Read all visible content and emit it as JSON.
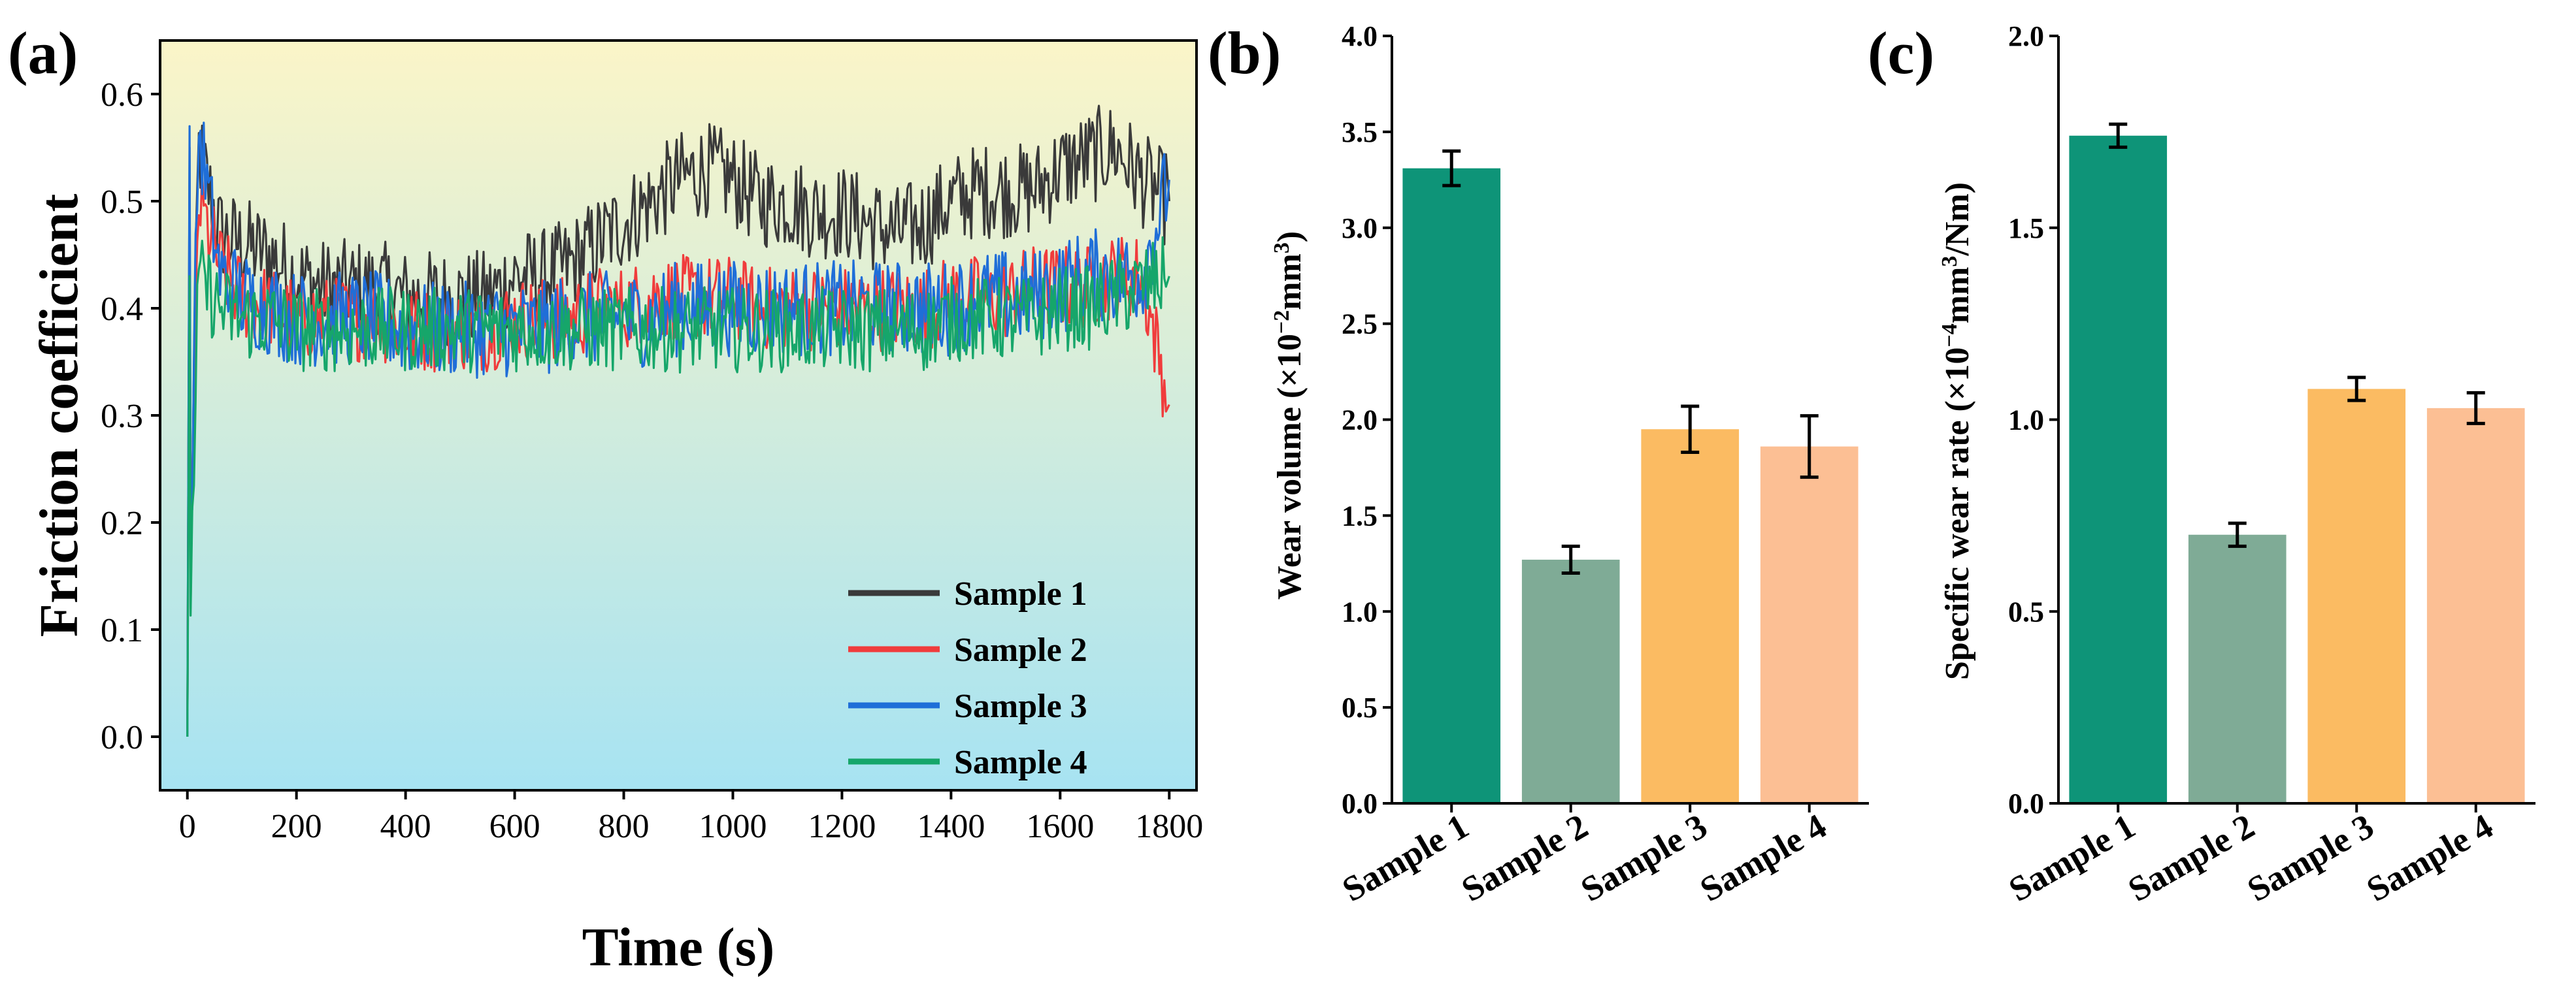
{
  "chart_data": [
    {
      "panel": "(a)",
      "type": "line",
      "xlabel": "Time (s)",
      "ylabel": "Friction coefficient",
      "xlim": [
        -50,
        1850
      ],
      "ylim": [
        -0.05,
        0.65
      ],
      "xticks": [
        "0",
        "200",
        "400",
        "600",
        "800",
        "1000",
        "1200",
        "1400",
        "1600",
        "1800"
      ],
      "yticks": [
        "0.0",
        "0.1",
        "0.2",
        "0.3",
        "0.4",
        "0.5",
        "0.6"
      ],
      "legend_position": "bottom-right",
      "background": {
        "top": "#fbf5c8",
        "bottom": "#a7e3f2"
      },
      "series": [
        {
          "name": "Sample 1",
          "color": "#3a3a3a",
          "x": [
            0,
            20,
            60,
            100,
            150,
            200,
            250,
            300,
            350,
            400,
            450,
            500,
            550,
            600,
            650,
            700,
            750,
            800,
            850,
            900,
            950,
            1000,
            1050,
            1100,
            1150,
            1200,
            1250,
            1300,
            1350,
            1400,
            1450,
            1500,
            1550,
            1600,
            1650,
            1700,
            1750,
            1800
          ],
          "y": [
            0,
            0.55,
            0.47,
            0.46,
            0.45,
            0.43,
            0.42,
            0.42,
            0.42,
            0.41,
            0.41,
            0.41,
            0.41,
            0.43,
            0.43,
            0.44,
            0.46,
            0.48,
            0.5,
            0.52,
            0.53,
            0.52,
            0.5,
            0.5,
            0.49,
            0.49,
            0.48,
            0.47,
            0.48,
            0.5,
            0.51,
            0.51,
            0.51,
            0.53,
            0.54,
            0.55,
            0.52,
            0.5
          ]
        },
        {
          "name": "Sample 2",
          "color": "#f03c3c",
          "x": [
            0,
            20,
            60,
            100,
            150,
            200,
            250,
            300,
            350,
            400,
            450,
            500,
            550,
            600,
            650,
            700,
            750,
            800,
            850,
            900,
            950,
            1000,
            1050,
            1100,
            1150,
            1200,
            1250,
            1300,
            1350,
            1400,
            1450,
            1500,
            1550,
            1600,
            1650,
            1700,
            1750,
            1800
          ],
          "y": [
            0,
            0.5,
            0.44,
            0.41,
            0.4,
            0.39,
            0.39,
            0.39,
            0.39,
            0.38,
            0.38,
            0.38,
            0.38,
            0.39,
            0.39,
            0.39,
            0.4,
            0.4,
            0.41,
            0.41,
            0.41,
            0.41,
            0.4,
            0.4,
            0.4,
            0.4,
            0.4,
            0.4,
            0.4,
            0.41,
            0.41,
            0.41,
            0.42,
            0.42,
            0.42,
            0.43,
            0.43,
            0.31
          ]
        },
        {
          "name": "Sample 3",
          "color": "#1f6ed8",
          "x": [
            0,
            20,
            60,
            100,
            150,
            200,
            250,
            300,
            350,
            400,
            450,
            500,
            550,
            600,
            650,
            700,
            750,
            800,
            850,
            900,
            950,
            1000,
            1050,
            1100,
            1150,
            1200,
            1250,
            1300,
            1350,
            1400,
            1450,
            1500,
            1550,
            1600,
            1650,
            1700,
            1750,
            1800
          ],
          "y": [
            0,
            0.57,
            0.43,
            0.41,
            0.4,
            0.39,
            0.39,
            0.39,
            0.39,
            0.38,
            0.38,
            0.38,
            0.38,
            0.38,
            0.38,
            0.39,
            0.39,
            0.39,
            0.39,
            0.4,
            0.4,
            0.4,
            0.4,
            0.4,
            0.4,
            0.4,
            0.4,
            0.4,
            0.4,
            0.4,
            0.41,
            0.41,
            0.41,
            0.42,
            0.43,
            0.43,
            0.43,
            0.52
          ]
        },
        {
          "name": "Sample 4",
          "color": "#16a66a",
          "x": [
            0,
            20,
            60,
            100,
            150,
            200,
            250,
            300,
            350,
            400,
            450,
            500,
            550,
            600,
            650,
            700,
            750,
            800,
            850,
            900,
            950,
            1000,
            1050,
            1100,
            1150,
            1200,
            1250,
            1300,
            1350,
            1400,
            1450,
            1500,
            1550,
            1600,
            1650,
            1700,
            1750,
            1800
          ],
          "y": [
            0,
            0.43,
            0.4,
            0.39,
            0.39,
            0.38,
            0.38,
            0.38,
            0.38,
            0.38,
            0.38,
            0.38,
            0.38,
            0.38,
            0.38,
            0.38,
            0.38,
            0.38,
            0.38,
            0.38,
            0.38,
            0.38,
            0.38,
            0.38,
            0.38,
            0.38,
            0.38,
            0.38,
            0.38,
            0.39,
            0.39,
            0.39,
            0.39,
            0.4,
            0.4,
            0.41,
            0.42,
            0.43
          ]
        }
      ]
    },
    {
      "panel": "(b)",
      "type": "bar",
      "ylabel": "Wear volume (×10",
      "ylabel_sup1": "−2",
      "ylabel_mid": "mm",
      "ylabel_sup2": "3",
      "ylabel_end": ")",
      "ylim": [
        0,
        4.0
      ],
      "yticks": [
        "0.0",
        "0.5",
        "1.0",
        "1.5",
        "2.0",
        "2.5",
        "3.0",
        "3.5",
        "4.0"
      ],
      "categories": [
        "Sample 1",
        "Sample 2",
        "Sample 3",
        "Sample 4"
      ],
      "values": [
        3.31,
        1.27,
        1.95,
        1.86
      ],
      "errors": [
        0.09,
        0.07,
        0.12,
        0.16
      ],
      "colors": [
        "#0e9478",
        "#7fab96",
        "#fbbb62",
        "#fcbf94"
      ]
    },
    {
      "panel": "(c)",
      "type": "bar",
      "ylabel": "Specific wear rate (×10",
      "ylabel_sup1": "−4",
      "ylabel_mid": "mm",
      "ylabel_sup2": "3",
      "ylabel_end": "/Nm)",
      "ylim": [
        0,
        2.0
      ],
      "yticks": [
        "0.0",
        "0.5",
        "1.0",
        "1.5",
        "2.0"
      ],
      "categories": [
        "Sample 1",
        "Sample 2",
        "Sample 3",
        "Sample 4"
      ],
      "values": [
        1.74,
        0.7,
        1.08,
        1.03
      ],
      "errors": [
        0.03,
        0.03,
        0.03,
        0.04
      ],
      "colors": [
        "#0e9478",
        "#7fab96",
        "#fbbb62",
        "#fcbf94"
      ]
    }
  ]
}
